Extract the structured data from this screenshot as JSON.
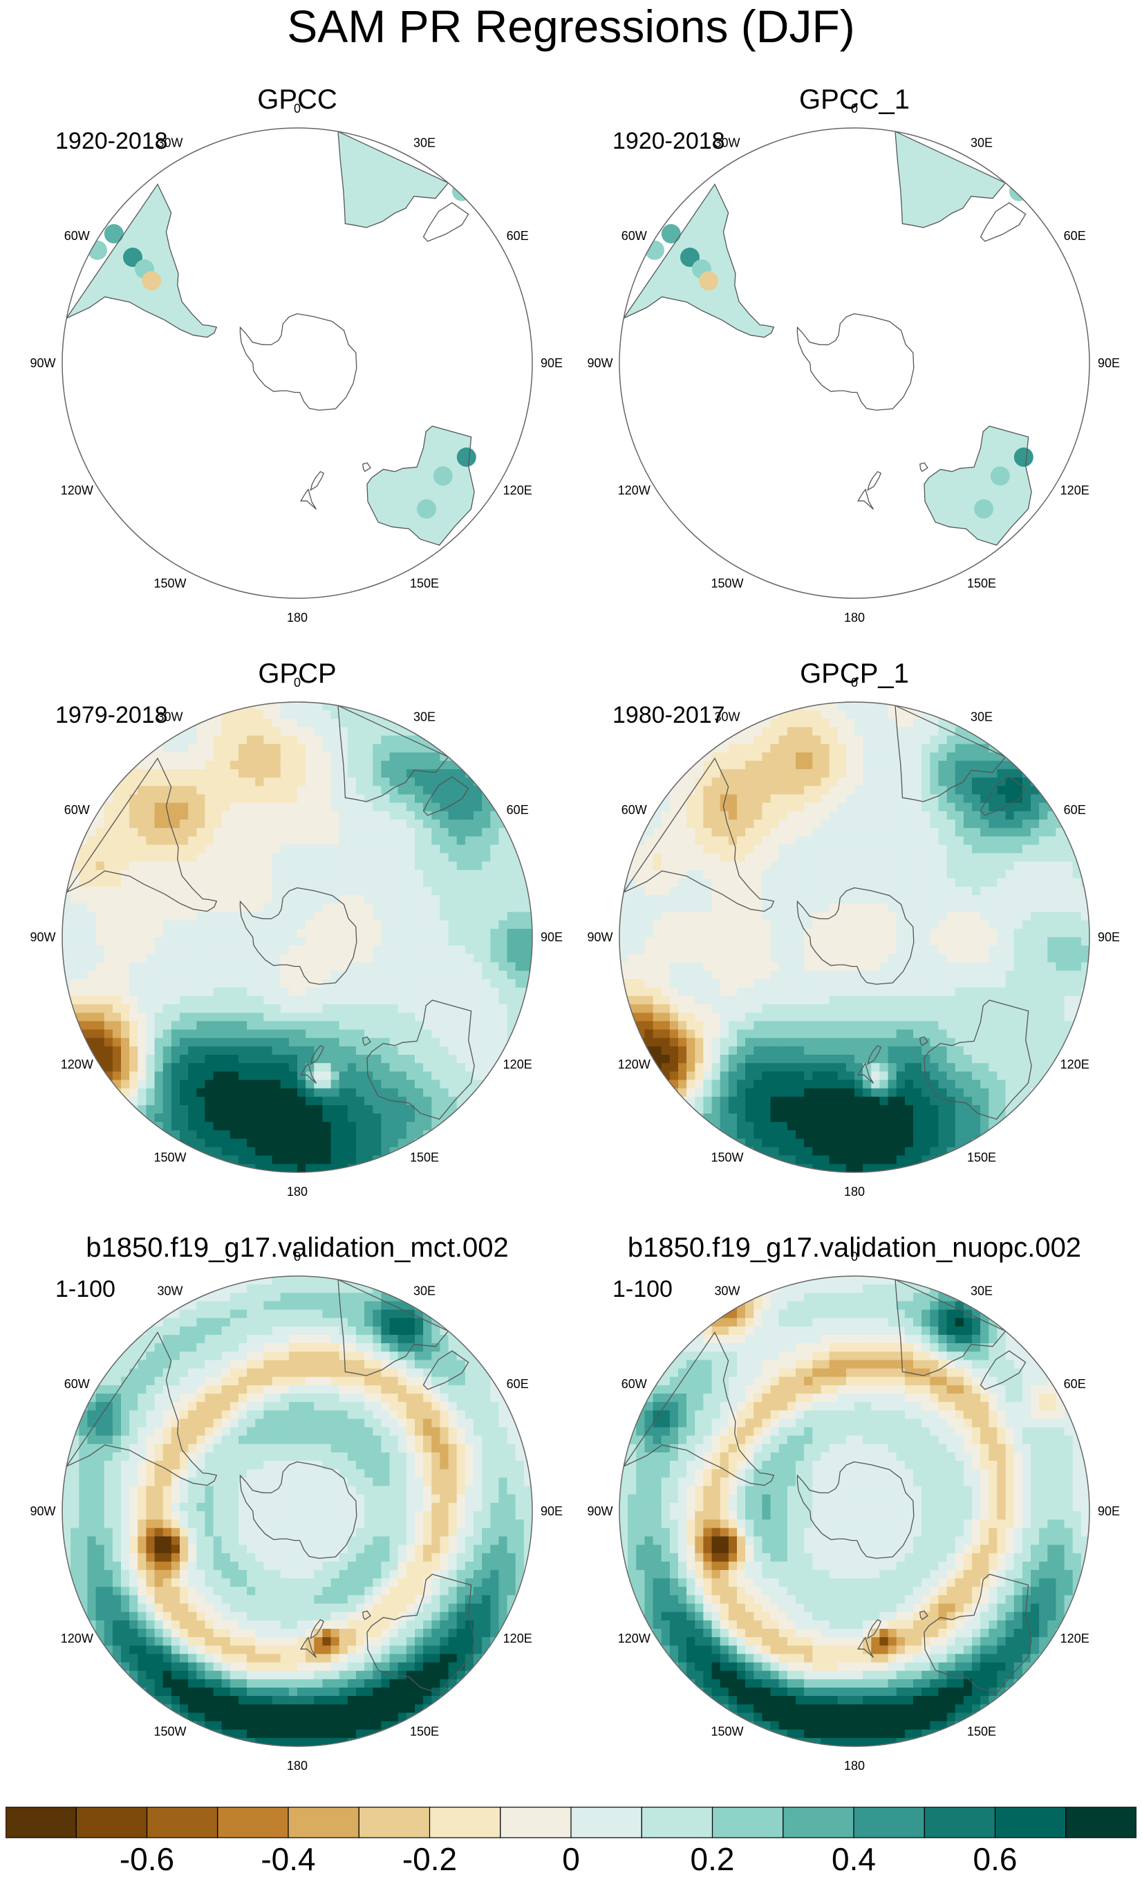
{
  "title": "SAM PR Regressions (DJF)",
  "panels": [
    {
      "name": "GPCC",
      "years": "1920-2018",
      "field": "gpcc"
    },
    {
      "name": "GPCC_1",
      "years": "1920-2018",
      "field": "gpcc"
    },
    {
      "name": "GPCP",
      "years": "1979-2018",
      "field": "obs"
    },
    {
      "name": "GPCP_1",
      "years": "1980-2017",
      "field": "obs2"
    },
    {
      "name": "b1850.f19_g17.validation_mct.002",
      "years": "1-100",
      "field": "model"
    },
    {
      "name": "b1850.f19_g17.validation_nuopc.002",
      "years": "1-100",
      "field": "model2"
    }
  ],
  "lon_labels": [
    "0",
    "30E",
    "60E",
    "90E",
    "120E",
    "150E",
    "180",
    "150W",
    "120W",
    "90W",
    "60W",
    "30W"
  ],
  "chart_data": {
    "type": "heatmap",
    "title": "SAM PR Regressions (DJF)",
    "projection": "south polar stereographic",
    "colorbar": {
      "levels": [
        -0.7,
        -0.6,
        -0.5,
        -0.4,
        -0.3,
        -0.2,
        -0.1,
        0,
        0.1,
        0.2,
        0.3,
        0.4,
        0.5,
        0.6,
        0.7
      ],
      "colors": [
        "#5a3507",
        "#7e4a0c",
        "#9e6218",
        "#bf812d",
        "#d9ac5f",
        "#e9cd93",
        "#f6e8c3",
        "#f2eee2",
        "#ddeeed",
        "#c0e8e1",
        "#8fd3c8",
        "#5bb2a7",
        "#35978f",
        "#157b72",
        "#01665e",
        "#003c30"
      ],
      "tick_labels": [
        "-0.6",
        "-0.4",
        "-0.2",
        "0",
        "0.2",
        "0.4",
        "0.6"
      ],
      "tick_values": [
        -0.6,
        -0.4,
        -0.2,
        0,
        0.2,
        0.4,
        0.6
      ]
    }
  }
}
